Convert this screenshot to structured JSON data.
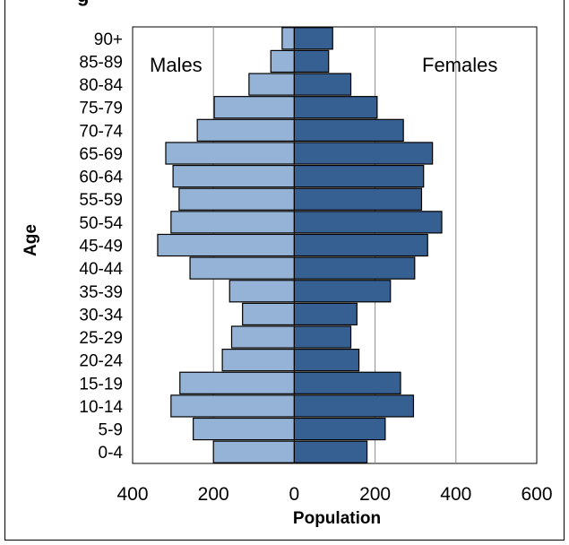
{
  "chart_data": {
    "type": "bar",
    "orientation": "horizontal",
    "layout": "population-pyramid",
    "title": "",
    "xlabel": "Population",
    "ylabel": "Age",
    "categories": [
      "0-4",
      "5-9",
      "10-14",
      "15-19",
      "20-24",
      "25-29",
      "30-34",
      "35-39",
      "40-44",
      "45-49",
      "50-54",
      "55-59",
      "60-64",
      "65-69",
      "70-74",
      "75-79",
      "80-84",
      "85-89",
      "90+"
    ],
    "series": [
      {
        "name": "Males",
        "values": [
          200,
          250,
          305,
          283,
          178,
          155,
          128,
          160,
          258,
          338,
          305,
          285,
          300,
          318,
          240,
          198,
          112,
          58,
          30
        ],
        "color": "#95b3d7",
        "side": "left"
      },
      {
        "name": "Females",
        "values": [
          180,
          225,
          295,
          263,
          160,
          140,
          155,
          238,
          298,
          330,
          365,
          315,
          320,
          342,
          270,
          205,
          140,
          85,
          95
        ],
        "color": "#376092",
        "side": "right"
      }
    ],
    "xlim": [
      -400,
      600
    ],
    "xticks": [
      -400,
      -200,
      0,
      200,
      400,
      600
    ],
    "xtick_labels": [
      "400",
      "200",
      "0",
      "200",
      "400",
      "600"
    ],
    "grid": "vertical",
    "legend_placement": "inside-top"
  },
  "title_fragment": "g"
}
